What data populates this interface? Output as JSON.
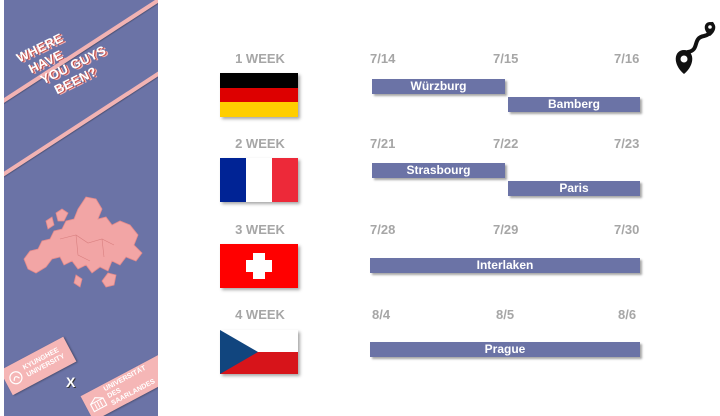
{
  "sidebar": {
    "title_lines": [
      "WHERE",
      "HAVE",
      "YOU GUYS",
      "BEEN?"
    ],
    "logo_left": [
      "KYUNGHEE",
      "UNIVERSITY"
    ],
    "logo_right": [
      "UNIVERSITÄT",
      "DES",
      "SAARLANDES"
    ],
    "logo_x": "X",
    "accent_color": "#6b73a6",
    "stripe_color": "#f2b3b3"
  },
  "weeks": [
    {
      "label": "1 WEEK",
      "flag": "germany",
      "dates": [
        "7/14",
        "7/15",
        "7/16"
      ],
      "stops": [
        "Würzburg",
        "Bamberg"
      ]
    },
    {
      "label": "2 WEEK",
      "flag": "france",
      "dates": [
        "7/21",
        "7/22",
        "7/23"
      ],
      "stops": [
        "Strasbourg",
        "Paris"
      ]
    },
    {
      "label": "3 WEEK",
      "flag": "switzerland",
      "dates": [
        "7/28",
        "7/29",
        "7/30"
      ],
      "stops": [
        "Interlaken"
      ]
    },
    {
      "label": "4 WEEK",
      "flag": "czech-republic",
      "dates": [
        "8/4",
        "8/5",
        "8/6"
      ],
      "stops": [
        "Prague"
      ]
    }
  ],
  "icons": {
    "top_right": "route-pin-icon",
    "map": "europe-map-icon"
  }
}
